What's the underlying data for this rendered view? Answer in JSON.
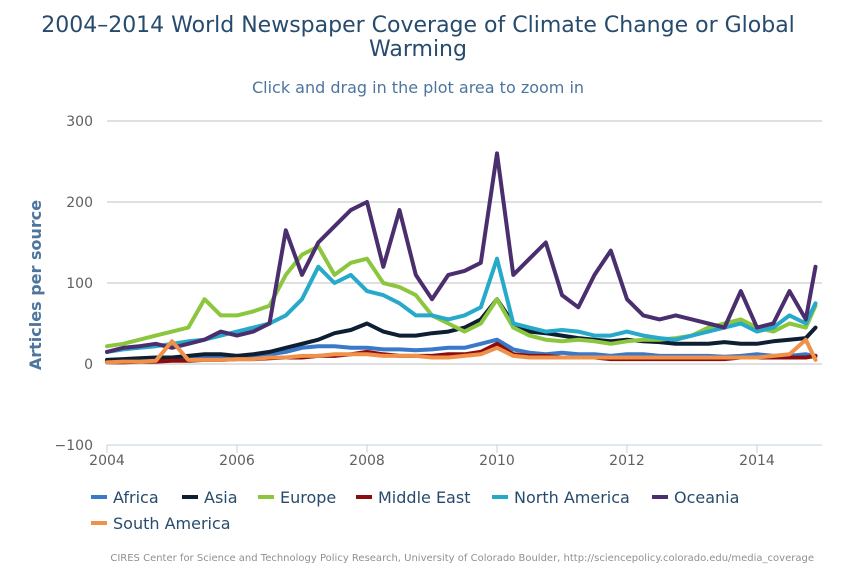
{
  "chart_data": {
    "type": "line",
    "title": "2004–2014 World Newspaper Coverage of Climate Change or Global Warming",
    "subtitle": "Click and drag in the plot area to zoom in",
    "ylabel": "Articles per source",
    "xlabel": "",
    "ylim": [
      -100,
      300
    ],
    "yticks": [
      -100,
      0,
      100,
      200,
      300
    ],
    "xlim": [
      2004,
      2015
    ],
    "xticks": [
      2004,
      2006,
      2008,
      2010,
      2012,
      2014
    ],
    "grid": true,
    "legend_position": "bottom",
    "x": [
      2004.0,
      2004.25,
      2004.5,
      2004.75,
      2005.0,
      2005.25,
      2005.5,
      2005.75,
      2006.0,
      2006.25,
      2006.5,
      2006.75,
      2007.0,
      2007.25,
      2007.5,
      2007.75,
      2008.0,
      2008.25,
      2008.5,
      2008.75,
      2009.0,
      2009.25,
      2009.5,
      2009.75,
      2010.0,
      2010.25,
      2010.5,
      2010.75,
      2011.0,
      2011.25,
      2011.5,
      2011.75,
      2012.0,
      2012.25,
      2012.5,
      2012.75,
      2013.0,
      2013.25,
      2013.5,
      2013.75,
      2014.0,
      2014.25,
      2014.5,
      2014.75,
      2014.9
    ],
    "series": [
      {
        "name": "Africa",
        "color": "#3a78c8",
        "values": [
          3,
          3,
          4,
          5,
          6,
          8,
          8,
          9,
          10,
          10,
          12,
          15,
          20,
          22,
          22,
          20,
          20,
          18,
          18,
          17,
          18,
          20,
          20,
          25,
          30,
          18,
          14,
          12,
          14,
          12,
          12,
          10,
          12,
          12,
          10,
          10,
          10,
          10,
          9,
          10,
          12,
          10,
          10,
          12,
          10
        ]
      },
      {
        "name": "Asia",
        "color": "#0e1f33",
        "values": [
          5,
          6,
          7,
          8,
          8,
          10,
          12,
          12,
          10,
          12,
          15,
          20,
          25,
          30,
          38,
          42,
          50,
          40,
          35,
          35,
          38,
          40,
          45,
          55,
          80,
          50,
          40,
          38,
          35,
          32,
          30,
          28,
          30,
          28,
          27,
          25,
          25,
          25,
          27,
          25,
          25,
          28,
          30,
          32,
          45
        ]
      },
      {
        "name": "Europe",
        "color": "#8cc63f",
        "values": [
          22,
          25,
          30,
          35,
          40,
          45,
          80,
          60,
          60,
          65,
          72,
          110,
          135,
          145,
          110,
          125,
          130,
          100,
          95,
          85,
          60,
          50,
          40,
          50,
          80,
          45,
          35,
          30,
          28,
          30,
          28,
          25,
          28,
          30,
          30,
          32,
          35,
          45,
          50,
          55,
          45,
          40,
          50,
          45,
          72
        ]
      },
      {
        "name": "Middle East",
        "color": "#8b0e0e",
        "values": [
          2,
          2,
          3,
          3,
          4,
          4,
          5,
          5,
          6,
          6,
          7,
          8,
          8,
          10,
          10,
          12,
          15,
          12,
          10,
          10,
          10,
          12,
          12,
          15,
          25,
          12,
          10,
          10,
          8,
          8,
          8,
          6,
          6,
          6,
          6,
          6,
          6,
          6,
          6,
          8,
          8,
          8,
          8,
          8,
          10
        ]
      },
      {
        "name": "North America",
        "color": "#27a9c9",
        "values": [
          15,
          18,
          20,
          22,
          25,
          28,
          30,
          35,
          40,
          45,
          50,
          60,
          80,
          120,
          100,
          110,
          90,
          85,
          75,
          60,
          60,
          55,
          60,
          70,
          130,
          50,
          45,
          40,
          42,
          40,
          35,
          35,
          40,
          35,
          32,
          30,
          35,
          40,
          45,
          50,
          40,
          45,
          60,
          50,
          75
        ]
      },
      {
        "name": "Oceania",
        "color": "#4a2e6e",
        "values": [
          15,
          20,
          22,
          25,
          20,
          25,
          30,
          40,
          35,
          40,
          50,
          165,
          110,
          150,
          170,
          190,
          200,
          120,
          190,
          110,
          80,
          110,
          115,
          125,
          260,
          110,
          130,
          150,
          85,
          70,
          110,
          140,
          80,
          60,
          55,
          60,
          55,
          50,
          45,
          90,
          45,
          50,
          90,
          55,
          120
        ]
      },
      {
        "name": "South America",
        "color": "#f0914a",
        "values": [
          2,
          3,
          3,
          4,
          28,
          5,
          5,
          5,
          6,
          6,
          8,
          8,
          10,
          10,
          12,
          12,
          12,
          10,
          10,
          10,
          8,
          8,
          10,
          12,
          20,
          10,
          8,
          8,
          8,
          8,
          8,
          8,
          8,
          8,
          8,
          8,
          8,
          8,
          8,
          8,
          8,
          10,
          12,
          30,
          5
        ]
      }
    ]
  },
  "credits": "CIRES Center for Science and Technology Policy Research, University of Colorado Boulder, http://sciencepolicy.colorado.edu/media_coverage"
}
